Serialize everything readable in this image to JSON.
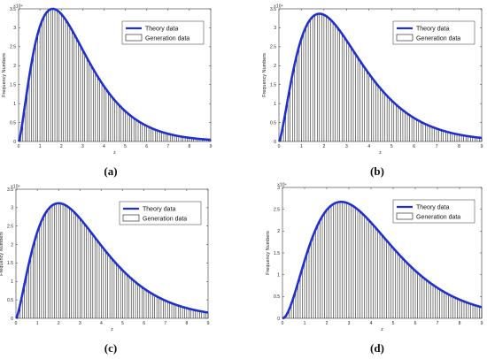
{
  "chart_data": [
    {
      "type": "bar",
      "panel_label": "(a)",
      "xlabel": "z",
      "ylabel": "Frequency Numbers",
      "y_exponent": "×10⁴",
      "xlim": [
        0,
        9
      ],
      "ylim": [
        0,
        3.5
      ],
      "xticks": [
        "0",
        "1",
        "2",
        "3",
        "4",
        "5",
        "6",
        "7",
        "8",
        "9"
      ],
      "yticks": [
        "0",
        "0.5",
        "1",
        "1.5",
        "2",
        "2.5",
        "3",
        "3.5"
      ],
      "legend": {
        "position": "top-right",
        "line_label": "Theory data",
        "bar_label": "Generation data"
      },
      "curve": {
        "peak_x": 1.6,
        "peak_y": 3.5,
        "shape_k": 2.5
      },
      "series": [
        {
          "name": "Theory data",
          "kind": "line",
          "color": "#1f2fd1"
        },
        {
          "name": "Generation data",
          "kind": "bar",
          "color": "#111111"
        }
      ]
    },
    {
      "type": "bar",
      "panel_label": "(b)",
      "xlabel": "z",
      "ylabel": "Frequency Numbers",
      "y_exponent": "×10⁴",
      "xlim": [
        0,
        9
      ],
      "ylim": [
        0,
        3.5
      ],
      "xticks": [
        "0",
        "1",
        "2",
        "3",
        "4",
        "5",
        "6",
        "7",
        "8",
        "9"
      ],
      "yticks": [
        "0",
        "0.5",
        "1",
        "1.5",
        "2",
        "2.5",
        "3",
        "3.5"
      ],
      "legend": {
        "position": "top-right",
        "line_label": "Theory data",
        "bar_label": "Generation data"
      },
      "curve": {
        "peak_x": 1.8,
        "peak_y": 3.37,
        "shape_k": 2.5
      },
      "series": [
        {
          "name": "Theory data",
          "kind": "line",
          "color": "#1f2fd1"
        },
        {
          "name": "Generation data",
          "kind": "bar",
          "color": "#111111"
        }
      ]
    },
    {
      "type": "bar",
      "panel_label": "(c)",
      "xlabel": "z",
      "ylabel": "Frequency Numbers",
      "y_exponent": "×10⁴",
      "xlim": [
        0,
        9
      ],
      "ylim": [
        0,
        3.5
      ],
      "xticks": [
        "0",
        "1",
        "2",
        "3",
        "4",
        "5",
        "6",
        "7",
        "8",
        "9"
      ],
      "yticks": [
        "0",
        "0.5",
        "1",
        "1.5",
        "2",
        "2.5",
        "3",
        "3.5"
      ],
      "legend": {
        "position": "top-right",
        "line_label": "Theory data",
        "bar_label": "Generation data"
      },
      "curve": {
        "peak_x": 2.0,
        "peak_y": 3.12,
        "shape_k": 2.5
      },
      "series": [
        {
          "name": "Theory data",
          "kind": "line",
          "color": "#1f2fd1"
        },
        {
          "name": "Generation data",
          "kind": "bar",
          "color": "#111111"
        }
      ]
    },
    {
      "type": "bar",
      "panel_label": "(d)",
      "xlabel": "z",
      "ylabel": "Frequency Numbers",
      "y_exponent": "×10⁴",
      "xlim": [
        0,
        9
      ],
      "ylim": [
        0,
        3
      ],
      "xticks": [
        "0",
        "1",
        "2",
        "3",
        "4",
        "5",
        "6",
        "7",
        "8",
        "9"
      ],
      "yticks": [
        "0",
        "0.5",
        "1",
        "1.5",
        "2",
        "2.5",
        "3"
      ],
      "legend": {
        "position": "top-right",
        "line_label": "Theory data",
        "bar_label": "Generation data"
      },
      "curve": {
        "peak_x": 2.65,
        "peak_y": 2.67,
        "shape_k": 3.0
      },
      "series": [
        {
          "name": "Theory data",
          "kind": "line",
          "color": "#1f2fd1"
        },
        {
          "name": "Generation data",
          "kind": "bar",
          "color": "#111111"
        }
      ]
    }
  ]
}
